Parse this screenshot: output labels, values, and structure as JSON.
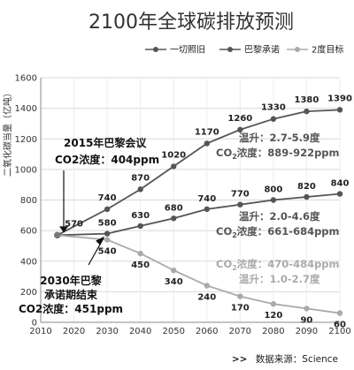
{
  "page": {
    "title": "2100年全球碳排放预测"
  },
  "chart_data": {
    "type": "line",
    "title": "2100年全球碳排放预测",
    "ylabel": "二氧化碳当量（亿吨）",
    "xlabel": "",
    "ylim": [
      0,
      1600
    ],
    "xlim": [
      2010,
      2100
    ],
    "x_ticks": [
      "2010",
      "2020",
      "2030",
      "2040",
      "2050",
      "2060",
      "2070",
      "2080",
      "2090",
      "2100"
    ],
    "y_ticks": [
      "0",
      "200",
      "400",
      "600",
      "800",
      "1000",
      "1200",
      "1400",
      "1600"
    ],
    "grid": "horizontal",
    "legend_position": "top",
    "series": [
      {
        "name": "一切照旧",
        "color": "#555555",
        "x": [
          2015,
          2030,
          2040,
          2050,
          2060,
          2070,
          2080,
          2090,
          2100
        ],
        "y": [
          570,
          740,
          870,
          1020,
          1170,
          1260,
          1330,
          1380,
          1390
        ],
        "labels": [
          "570",
          "740",
          "870",
          "1020",
          "1170",
          "1260",
          "1330",
          "1380",
          "1390"
        ],
        "label_points": [
          2020,
          2030,
          2040,
          2050,
          2060,
          2070,
          2080,
          2090,
          2100
        ]
      },
      {
        "name": "巴黎承诺",
        "color": "#555555",
        "x": [
          2015,
          2030,
          2040,
          2050,
          2060,
          2070,
          2080,
          2090,
          2100
        ],
        "y": [
          570,
          580,
          630,
          680,
          740,
          770,
          800,
          820,
          840
        ],
        "labels": [
          "580",
          "630",
          "680",
          "740",
          "770",
          "800",
          "820",
          "840"
        ]
      },
      {
        "name": "2度目标",
        "color": "#aaaaaa",
        "x": [
          2015,
          2030,
          2040,
          2050,
          2060,
          2070,
          2080,
          2090,
          2100
        ],
        "y": [
          570,
          540,
          450,
          340,
          240,
          170,
          120,
          90,
          60
        ],
        "labels": [
          "540",
          "450",
          "340",
          "240",
          "170",
          "120",
          "90",
          "60"
        ]
      }
    ],
    "start_label": "570",
    "annotations": {
      "paris2015": {
        "line1": "2015年巴黎会议",
        "line2": "CO2浓度：404ppm"
      },
      "paris2030": {
        "line1": "2030年巴黎",
        "line2": "承诺期结束",
        "line3": "CO2浓度：451ppm"
      },
      "bau": {
        "line1": "温升：2.7-5.9度",
        "line2": "CO",
        "sub": "2",
        "line2b": "浓度：889-922ppm"
      },
      "paris": {
        "line1": "温升：2.0-4.6度",
        "line2": "CO",
        "sub": "2",
        "line2b": "浓度：661-684ppm"
      },
      "twodeg": {
        "line1": "CO",
        "sub": "2",
        "line1b": "浓度：470-484ppm",
        "line2": "温升：1.0-2.7度"
      }
    },
    "source": "数据来源：Science",
    "source_marker": ">>"
  }
}
